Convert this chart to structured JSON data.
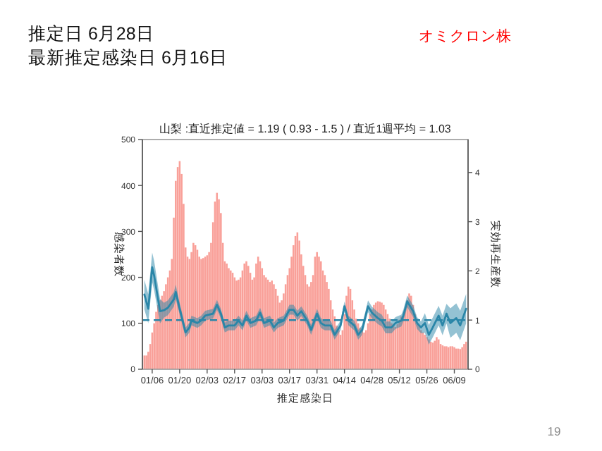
{
  "chart_data": {
    "type": "bar",
    "title": "推定日 6月28日",
    "subtitle": "最新推定感染日 6月16日",
    "annotations": [
      "オミクロン株",
      "19",
      "山梨 :直近推定値 = 1.19 ( 0.93 - 1.5 ) / 直近1週平均 = 1.03"
    ],
    "xlabel": "推定感染日",
    "ylabel": "感染者数",
    "y2label": "実効再生産数",
    "xlim": [
      "--01-01",
      "--06-16"
    ],
    "xticks": [
      {
        "value": "--01-06",
        "label": "01/06"
      },
      {
        "value": "--01-20",
        "label": "01/20"
      },
      {
        "value": "--02-03",
        "label": "02/03"
      },
      {
        "value": "--02-17",
        "label": "02/17"
      },
      {
        "value": "--03-03",
        "label": "03/03"
      },
      {
        "value": "--03-17",
        "label": "03/17"
      },
      {
        "value": "--03-31",
        "label": "03/31"
      },
      {
        "value": "--04-14",
        "label": "04/14"
      },
      {
        "value": "--04-28",
        "label": "04/28"
      },
      {
        "value": "--05-12",
        "label": "05/12"
      },
      {
        "value": "--05-26",
        "label": "05/26"
      },
      {
        "value": "--06-09",
        "label": "06/09"
      }
    ],
    "ylim": [
      0,
      500
    ],
    "yticks": [
      0,
      100,
      200,
      300,
      400,
      500
    ],
    "y2lim": [
      0,
      4.67
    ],
    "y2ticks": [
      0,
      1,
      2,
      3,
      4
    ],
    "ref_lines": [
      {
        "axis": "y2",
        "value": 1,
        "color": "#2a86a8",
        "line_style": "dashed"
      }
    ],
    "series": [
      {
        "color": "#f9a099",
        "x": [
          "--01-02",
          "--01-03",
          "--01-04",
          "--01-05",
          "--01-06",
          "--01-07",
          "--01-08",
          "--01-09",
          "--01-10",
          "--01-11",
          "--01-12",
          "--01-13",
          "--01-14",
          "--01-15",
          "--01-16",
          "--01-17",
          "--01-18",
          "--01-19",
          "--01-20",
          "--01-21",
          "--01-22",
          "--01-23",
          "--01-24",
          "--01-25",
          "--01-26",
          "--01-27",
          "--01-28",
          "--01-29",
          "--01-30",
          "--01-31",
          "--02-01",
          "--02-02",
          "--02-03",
          "--02-04",
          "--02-05",
          "--02-06",
          "--02-07",
          "--02-08",
          "--02-09",
          "--02-10",
          "--02-11",
          "--02-12",
          "--02-13",
          "--02-14",
          "--02-15",
          "--02-16",
          "--02-17",
          "--02-18",
          "--02-19",
          "--02-20",
          "--02-21",
          "--02-22",
          "--02-23",
          "--02-24",
          "--02-25",
          "--02-26",
          "--02-27",
          "--02-28",
          "--03-01",
          "--03-02",
          "--03-03",
          "--03-04",
          "--03-05",
          "--03-06",
          "--03-07",
          "--03-08",
          "--03-09",
          "--03-10",
          "--03-11",
          "--03-12",
          "--03-13",
          "--03-14",
          "--03-15",
          "--03-16",
          "--03-17",
          "--03-18",
          "--03-19",
          "--03-20",
          "--03-21",
          "--03-22",
          "--03-23",
          "--03-24",
          "--03-25",
          "--03-26",
          "--03-27",
          "--03-28",
          "--03-29",
          "--03-30",
          "--03-31",
          "--04-01",
          "--04-02",
          "--04-03",
          "--04-04",
          "--04-05",
          "--04-06",
          "--04-07",
          "--04-08",
          "--04-09",
          "--04-10",
          "--04-11",
          "--04-12",
          "--04-13",
          "--04-14",
          "--04-15",
          "--04-16",
          "--04-17",
          "--04-18",
          "--04-19",
          "--04-20",
          "--04-21",
          "--04-22",
          "--04-23",
          "--04-24",
          "--04-25",
          "--04-26",
          "--04-27",
          "--04-28",
          "--04-29",
          "--04-30",
          "--05-01",
          "--05-02",
          "--05-03",
          "--05-04",
          "--05-05",
          "--05-06",
          "--05-07",
          "--05-08",
          "--05-09",
          "--05-10",
          "--05-11",
          "--05-12",
          "--05-13",
          "--05-14",
          "--05-15",
          "--05-16",
          "--05-17",
          "--05-18",
          "--05-19",
          "--05-20",
          "--05-21",
          "--05-22",
          "--05-23",
          "--05-24",
          "--05-25",
          "--05-26",
          "--05-27",
          "--05-28",
          "--05-29",
          "--05-30",
          "--05-31",
          "--06-01",
          "--06-02",
          "--06-03",
          "--06-04",
          "--06-05",
          "--06-06",
          "--06-07",
          "--06-08",
          "--06-09",
          "--06-10",
          "--06-11",
          "--06-12",
          "--06-13",
          "--06-14",
          "--06-15"
        ],
        "values": [
          30,
          30,
          38,
          55,
          80,
          100,
          125,
          140,
          150,
          160,
          170,
          185,
          200,
          215,
          240,
          330,
          410,
          440,
          453,
          425,
          360,
          265,
          245,
          240,
          255,
          275,
          270,
          260,
          245,
          240,
          242,
          245,
          248,
          255,
          275,
          320,
          365,
          384,
          370,
          340,
          275,
          235,
          230,
          220,
          215,
          210,
          200,
          193,
          195,
          200,
          215,
          230,
          235,
          225,
          210,
          195,
          200,
          230,
          245,
          235,
          220,
          205,
          200,
          195,
          190,
          193,
          185,
          175,
          160,
          145,
          150,
          165,
          185,
          205,
          220,
          245,
          270,
          290,
          298,
          280,
          250,
          225,
          205,
          185,
          180,
          190,
          205,
          245,
          255,
          245,
          235,
          215,
          205,
          190,
          175,
          150,
          130,
          115,
          95,
          85,
          75,
          85,
          120,
          160,
          180,
          175,
          150,
          130,
          110,
          100,
          90,
          85,
          80,
          85,
          100,
          120,
          130,
          140,
          145,
          148,
          147,
          145,
          140,
          130,
          120,
          110,
          100,
          95,
          92,
          98,
          108,
          115,
          120,
          130,
          150,
          165,
          160,
          140,
          120,
          100,
          95,
          85,
          80,
          75,
          70,
          65,
          60,
          58,
          62,
          70,
          65,
          55,
          52,
          50,
          50,
          48,
          50,
          50,
          48,
          45,
          45,
          44,
          48,
          55,
          60
        ]
      },
      {
        "type": "line",
        "axis": "y2",
        "color": "#2a86a8",
        "x": [
          "--01-02",
          "--01-04",
          "--01-06",
          "--01-07",
          "--01-10",
          "--01-12",
          "--01-14",
          "--01-17",
          "--01-18",
          "--01-20",
          "--01-23",
          "--01-25",
          "--01-26",
          "--01-29",
          "--01-31",
          "--02-02",
          "--02-06",
          "--02-08",
          "--02-10",
          "--02-12",
          "--02-14",
          "--02-17",
          "--02-19",
          "--02-21",
          "--02-23",
          "--02-25",
          "--02-28",
          "--03-02",
          "--03-04",
          "--03-07",
          "--03-09",
          "--03-11",
          "--03-14",
          "--03-17",
          "--03-19",
          "--03-21",
          "--03-23",
          "--03-26",
          "--03-28",
          "--03-31",
          "--04-02",
          "--04-04",
          "--04-07",
          "--04-09",
          "--04-12",
          "--04-14",
          "--04-16",
          "--04-19",
          "--04-21",
          "--04-23",
          "--04-26",
          "--04-28",
          "--05-01",
          "--05-03",
          "--05-05",
          "--05-08",
          "--05-10",
          "--05-13",
          "--05-14",
          "--05-16",
          "--05-19",
          "--05-21",
          "--05-23",
          "--05-25",
          "--05-27",
          "--05-29",
          "--06-01",
          "--06-03",
          "--06-05",
          "--06-07",
          "--06-10",
          "--06-12",
          "--06-15"
        ],
        "values": [
          1.52,
          1.23,
          2.07,
          1.9,
          1.18,
          1.2,
          1.25,
          1.42,
          1.57,
          1.23,
          0.75,
          0.85,
          0.99,
          0.94,
          0.99,
          1.09,
          1.13,
          1.31,
          1.13,
          0.85,
          0.89,
          0.89,
          0.99,
          0.89,
          1.09,
          0.94,
          0.99,
          1.15,
          0.94,
          0.99,
          0.85,
          0.94,
          0.99,
          1.21,
          1.21,
          1.09,
          1.18,
          0.99,
          0.8,
          1.13,
          0.94,
          0.89,
          0.89,
          0.7,
          0.89,
          1.28,
          0.99,
          0.89,
          0.7,
          0.8,
          1.28,
          1.15,
          1.04,
          0.99,
          0.85,
          0.85,
          0.94,
          0.99,
          1.09,
          1.38,
          1.18,
          0.94,
          0.85,
          0.94,
          0.7,
          0.85,
          1.09,
          0.89,
          1.13,
          0.94,
          1.04,
          0.89,
          1.23
        ],
        "lower": [
          1.22,
          0.93,
          1.77,
          1.6,
          0.93,
          1.05,
          1.1,
          1.27,
          1.42,
          1.11,
          0.65,
          0.75,
          0.89,
          0.84,
          0.89,
          0.99,
          1.03,
          1.21,
          1.03,
          0.75,
          0.79,
          0.79,
          0.89,
          0.79,
          0.99,
          0.84,
          0.89,
          1.05,
          0.84,
          0.89,
          0.75,
          0.84,
          0.89,
          1.11,
          1.11,
          0.99,
          1.08,
          0.89,
          0.7,
          1.03,
          0.84,
          0.79,
          0.79,
          0.6,
          0.79,
          1.18,
          0.89,
          0.79,
          0.6,
          0.7,
          1.16,
          1.03,
          0.92,
          0.87,
          0.73,
          0.73,
          0.82,
          0.87,
          0.97,
          1.26,
          1.06,
          0.82,
          0.73,
          0.74,
          0.5,
          0.65,
          0.89,
          0.69,
          0.93,
          0.64,
          0.74,
          0.59,
          0.93
        ],
        "upper": [
          1.82,
          1.53,
          2.37,
          2.2,
          1.43,
          1.35,
          1.4,
          1.57,
          1.72,
          1.35,
          0.85,
          0.95,
          1.09,
          1.04,
          1.09,
          1.19,
          1.23,
          1.41,
          1.23,
          0.95,
          0.99,
          0.99,
          1.09,
          0.99,
          1.19,
          1.04,
          1.09,
          1.25,
          1.04,
          1.09,
          0.95,
          1.04,
          1.09,
          1.31,
          1.31,
          1.19,
          1.28,
          1.09,
          0.9,
          1.23,
          1.04,
          0.99,
          0.99,
          0.8,
          0.99,
          1.38,
          1.09,
          0.99,
          0.8,
          0.9,
          1.4,
          1.27,
          1.16,
          1.11,
          0.97,
          0.97,
          1.06,
          1.11,
          1.21,
          1.5,
          1.3,
          1.06,
          0.97,
          1.14,
          0.9,
          1.05,
          1.29,
          1.09,
          1.33,
          1.24,
          1.34,
          1.19,
          1.53
        ]
      }
    ]
  }
}
